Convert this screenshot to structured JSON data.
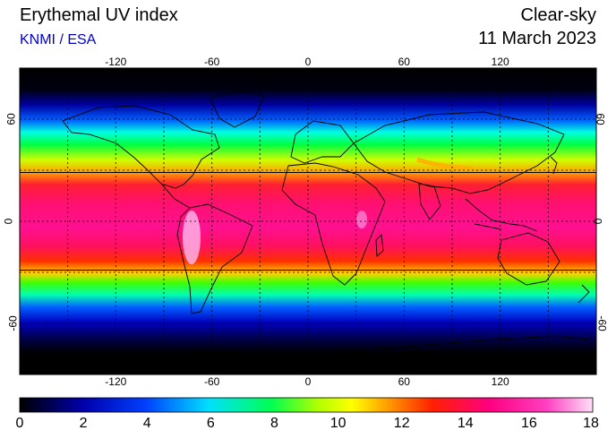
{
  "header": {
    "title": "Erythemal UV index",
    "source": "KNMI / ESA",
    "mode": "Clear-sky",
    "date": "11 March 2023"
  },
  "map": {
    "projection": "equirectangular",
    "lon_ticks": [
      "-120",
      "-60",
      "0",
      "60",
      "120"
    ],
    "lat_ticks": [
      "60",
      "0",
      "-60"
    ],
    "grid": "dashed 30° graticule",
    "tropics_lines": true
  },
  "colorbar": {
    "range": [
      0,
      18
    ],
    "labels": [
      "0",
      "2",
      "4",
      "6",
      "8",
      "10",
      "12",
      "14",
      "16",
      "18"
    ],
    "colors": [
      "#000000",
      "#0000aa",
      "#0050ff",
      "#00e0ff",
      "#00ff60",
      "#b0ff00",
      "#ffff00",
      "#ffa000",
      "#ff2000",
      "#ff0080",
      "#ff40c0",
      "#ffd0f0"
    ]
  }
}
